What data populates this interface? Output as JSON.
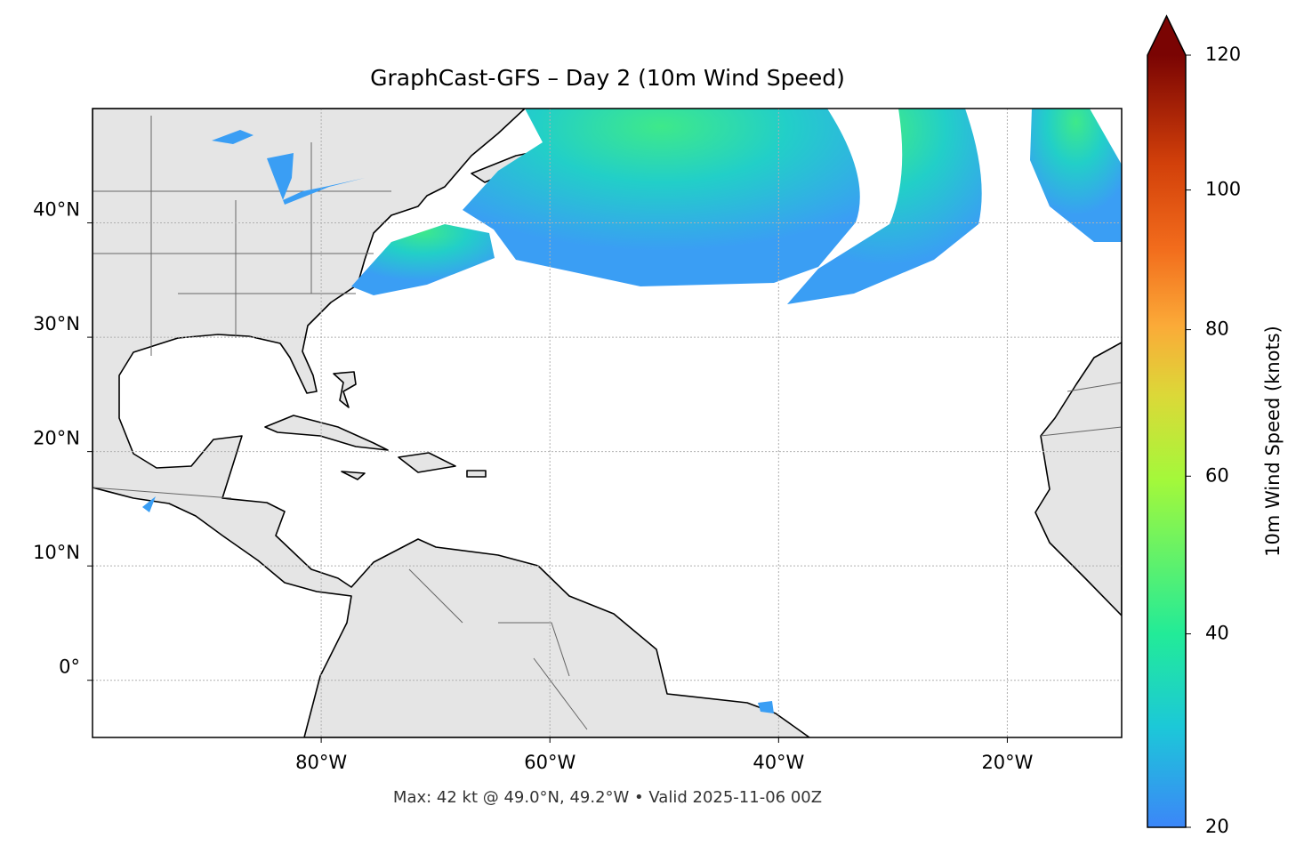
{
  "title": "GraphCast-GFS – Day 2 (10m Wind Speed)",
  "map": {
    "lon_range": [
      -100,
      -10
    ],
    "lat_range": [
      -5,
      50
    ],
    "lon_ticks": [
      {
        "value": -80,
        "label": "80°W"
      },
      {
        "value": -60,
        "label": "60°W"
      },
      {
        "value": -40,
        "label": "40°W"
      },
      {
        "value": -20,
        "label": "20°W"
      }
    ],
    "lat_ticks": [
      {
        "value": 0,
        "label": "0°"
      },
      {
        "value": 10,
        "label": "10°N"
      },
      {
        "value": 20,
        "label": "20°N"
      },
      {
        "value": 30,
        "label": "30°N"
      },
      {
        "value": 40,
        "label": "40°N"
      }
    ],
    "grid": true
  },
  "colorbar": {
    "label": "10m Wind Speed (knots)",
    "range": [
      20,
      120
    ],
    "ticks": [
      20,
      40,
      60,
      80,
      100,
      120
    ],
    "gamma": 0.86,
    "extend": "max"
  },
  "footnote": "Max: 42 kt @ 49.0°N, 49.2°W • Valid 2025-11-06 00Z"
}
